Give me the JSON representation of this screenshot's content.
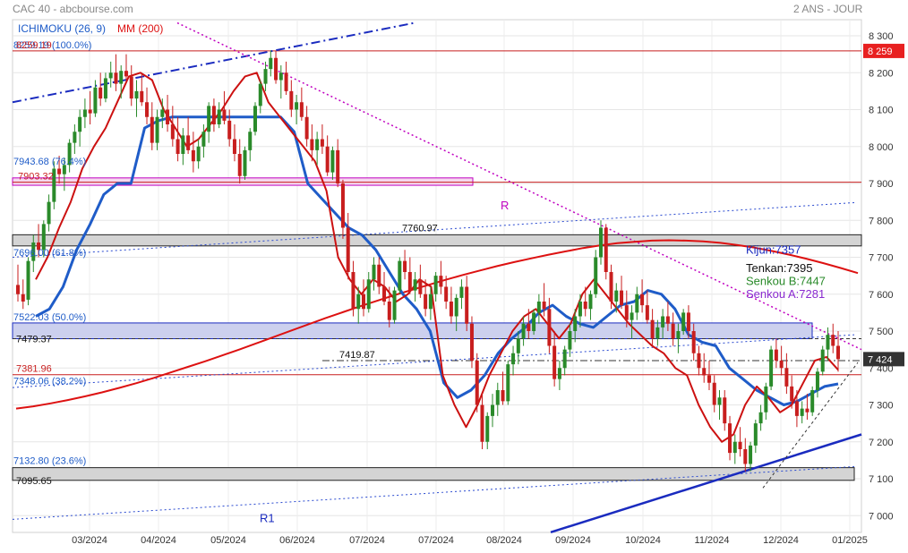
{
  "header": {
    "instrument": "CAC 40 - abcbourse.com",
    "period": "2 ANS - JOUR"
  },
  "legend": {
    "ichimoku_label": "ICHIMOKU (26, 9)",
    "ma_label": "MM (200)",
    "colors": {
      "ichimoku": "#1f5cc8",
      "ma": "#dd1111"
    }
  },
  "readouts": {
    "kijun": "Kijun:7357",
    "tenkan": "Tenkan:7395",
    "senkou_b": "Senkou B:7447",
    "senkou_a": "Senkou A:7281",
    "colors": {
      "kijun": "#1a2bbf",
      "tenkan": "#111111",
      "senkou_b": "#2a8a2a",
      "senkou_a": "#8a2ad0"
    }
  },
  "chart_data": {
    "type": "candlestick",
    "y_ticks": [
      "8 300",
      "8 200",
      "8 100",
      "8 000",
      "7 900",
      "7 800",
      "7 700",
      "7 600",
      "7 500",
      "7 400",
      "7 300",
      "7 200",
      "7 100",
      "7 000"
    ],
    "ylim": [
      6975,
      8340
    ],
    "x_ticks": [
      "03/2024",
      "04/2024",
      "05/2024",
      "06/2024",
      "07/2024",
      "07/2024",
      "08/2024",
      "09/2024",
      "10/2024",
      "11/2024",
      "12/2024",
      "01/2025"
    ],
    "price_badges": [
      {
        "value": 8259,
        "label": "8 259",
        "color": "#e82020"
      },
      {
        "value": 7424,
        "label": "7 424",
        "color": "#333333"
      }
    ],
    "fibonacci": [
      {
        "value": 8259.19,
        "label": "8259.19 (100.0%)"
      },
      {
        "value": 7943.68,
        "label": "7943.68 (76.4%)"
      },
      {
        "value": 7696.0,
        "label": "7696.00 (61.8%)"
      },
      {
        "value": 7522.03,
        "label": "7522.03 (50.0%)"
      },
      {
        "value": 7348.06,
        "label": "7348.06 (38.2%)"
      },
      {
        "value": 7132.8,
        "label": "7132.80 (23.6%)"
      }
    ],
    "levels": [
      {
        "value": 8259.19,
        "label": "8259.19"
      },
      {
        "value": 7903.32,
        "label": "7903.32"
      },
      {
        "value": 7479.37,
        "label": "7479.37"
      },
      {
        "value": 7381.96,
        "label": "7381.96"
      },
      {
        "value": 7095.65,
        "label": "7095.65"
      }
    ],
    "annotations": [
      {
        "value": 7760.97,
        "label": "7760.97"
      },
      {
        "value": 7419.87,
        "label": "7419.87"
      },
      {
        "label": "R"
      },
      {
        "label": "R1"
      }
    ],
    "candles": [
      [
        7625,
        7680,
        7580,
        7600
      ],
      [
        7600,
        7640,
        7560,
        7580
      ],
      [
        7585,
        7700,
        7570,
        7690
      ],
      [
        7690,
        7760,
        7660,
        7740
      ],
      [
        7740,
        7790,
        7700,
        7720
      ],
      [
        7720,
        7800,
        7700,
        7790
      ],
      [
        7790,
        7870,
        7770,
        7850
      ],
      [
        7850,
        7960,
        7830,
        7940
      ],
      [
        7940,
        7975,
        7900,
        7925
      ],
      [
        7925,
        7970,
        7880,
        7950
      ],
      [
        7950,
        8020,
        7930,
        8010
      ],
      [
        8010,
        8060,
        7980,
        8040
      ],
      [
        8040,
        8100,
        8000,
        8080
      ],
      [
        8080,
        8130,
        8050,
        8100
      ],
      [
        8100,
        8150,
        8060,
        8090
      ],
      [
        8090,
        8180,
        8080,
        8160
      ],
      [
        8160,
        8200,
        8110,
        8130
      ],
      [
        8130,
        8200,
        8120,
        8185
      ],
      [
        8185,
        8230,
        8160,
        8200
      ],
      [
        8200,
        8250,
        8150,
        8170
      ],
      [
        8170,
        8220,
        8130,
        8205
      ],
      [
        8205,
        8250,
        8180,
        8190
      ],
      [
        8190,
        8220,
        8110,
        8130
      ],
      [
        8130,
        8180,
        8080,
        8150
      ],
      [
        8150,
        8200,
        8110,
        8120
      ],
      [
        8120,
        8160,
        8060,
        8080
      ],
      [
        8080,
        8120,
        7990,
        8010
      ],
      [
        8010,
        8100,
        7990,
        8080
      ],
      [
        8080,
        8130,
        8050,
        8100
      ],
      [
        8100,
        8140,
        8040,
        8060
      ],
      [
        8060,
        8110,
        8000,
        8020
      ],
      [
        8020,
        8080,
        7960,
        7980
      ],
      [
        7980,
        8050,
        7950,
        8030
      ],
      [
        8030,
        8080,
        7980,
        7990
      ],
      [
        7990,
        8040,
        7930,
        7960
      ],
      [
        7960,
        8020,
        7940,
        8000
      ],
      [
        8000,
        8060,
        7970,
        8040
      ],
      [
        8040,
        8120,
        8010,
        8110
      ],
      [
        8110,
        8130,
        8040,
        8060
      ],
      [
        8060,
        8120,
        8050,
        8100
      ],
      [
        8100,
        8150,
        8060,
        8070
      ],
      [
        8070,
        8100,
        8000,
        8020
      ],
      [
        8020,
        8060,
        7960,
        7980
      ],
      [
        7980,
        8020,
        7900,
        7920
      ],
      [
        7920,
        8000,
        7910,
        7990
      ],
      [
        7990,
        8050,
        7960,
        8040
      ],
      [
        8040,
        8120,
        8030,
        8110
      ],
      [
        8110,
        8180,
        8090,
        8170
      ],
      [
        8170,
        8230,
        8150,
        8210
      ],
      [
        8210,
        8260,
        8190,
        8240
      ],
      [
        8240,
        8260,
        8170,
        8180
      ],
      [
        8180,
        8220,
        8130,
        8200
      ],
      [
        8200,
        8230,
        8140,
        8150
      ],
      [
        8150,
        8180,
        8080,
        8100
      ],
      [
        8100,
        8140,
        8060,
        8120
      ],
      [
        8120,
        8160,
        8070,
        8080
      ],
      [
        8080,
        8110,
        8000,
        8020
      ],
      [
        8020,
        8060,
        7960,
        7990
      ],
      [
        7990,
        8040,
        7950,
        8020
      ],
      [
        8020,
        8060,
        7980,
        8000
      ],
      [
        8000,
        8030,
        7920,
        7930
      ],
      [
        7930,
        8000,
        7910,
        7990
      ],
      [
        7990,
        8020,
        7890,
        7900
      ],
      [
        7900,
        7910,
        7750,
        7780
      ],
      [
        7780,
        7820,
        7640,
        7660
      ],
      [
        7660,
        7690,
        7540,
        7560
      ],
      [
        7560,
        7620,
        7520,
        7600
      ],
      [
        7600,
        7640,
        7540,
        7560
      ],
      [
        7560,
        7660,
        7550,
        7640
      ],
      [
        7640,
        7700,
        7610,
        7680
      ],
      [
        7680,
        7700,
        7600,
        7620
      ],
      [
        7620,
        7660,
        7570,
        7580
      ],
      [
        7580,
        7620,
        7510,
        7530
      ],
      [
        7530,
        7620,
        7520,
        7610
      ],
      [
        7610,
        7700,
        7600,
        7690
      ],
      [
        7690,
        7720,
        7640,
        7660
      ],
      [
        7660,
        7700,
        7600,
        7610
      ],
      [
        7610,
        7660,
        7580,
        7640
      ],
      [
        7640,
        7680,
        7590,
        7600
      ],
      [
        7600,
        7640,
        7540,
        7560
      ],
      [
        7560,
        7620,
        7530,
        7600
      ],
      [
        7600,
        7660,
        7580,
        7650
      ],
      [
        7650,
        7690,
        7600,
        7620
      ],
      [
        7620,
        7650,
        7560,
        7580
      ],
      [
        7580,
        7620,
        7520,
        7540
      ],
      [
        7540,
        7600,
        7500,
        7590
      ],
      [
        7590,
        7640,
        7560,
        7620
      ],
      [
        7620,
        7650,
        7500,
        7520
      ],
      [
        7520,
        7540,
        7400,
        7420
      ],
      [
        7420,
        7440,
        7280,
        7300
      ],
      [
        7300,
        7330,
        7180,
        7200
      ],
      [
        7200,
        7280,
        7180,
        7270
      ],
      [
        7270,
        7330,
        7240,
        7300
      ],
      [
        7300,
        7360,
        7270,
        7340
      ],
      [
        7340,
        7390,
        7300,
        7310
      ],
      [
        7310,
        7420,
        7300,
        7410
      ],
      [
        7410,
        7460,
        7380,
        7440
      ],
      [
        7440,
        7500,
        7410,
        7480
      ],
      [
        7480,
        7540,
        7460,
        7520
      ],
      [
        7520,
        7560,
        7480,
        7500
      ],
      [
        7500,
        7560,
        7490,
        7550
      ],
      [
        7550,
        7600,
        7520,
        7580
      ],
      [
        7580,
        7630,
        7540,
        7560
      ],
      [
        7560,
        7590,
        7440,
        7460
      ],
      [
        7460,
        7500,
        7350,
        7370
      ],
      [
        7370,
        7420,
        7340,
        7400
      ],
      [
        7400,
        7460,
        7380,
        7450
      ],
      [
        7450,
        7520,
        7430,
        7500
      ],
      [
        7500,
        7560,
        7470,
        7540
      ],
      [
        7540,
        7600,
        7510,
        7580
      ],
      [
        7580,
        7620,
        7540,
        7560
      ],
      [
        7560,
        7610,
        7530,
        7600
      ],
      [
        7600,
        7720,
        7590,
        7700
      ],
      [
        7700,
        7800,
        7680,
        7780
      ],
      [
        7780,
        7790,
        7640,
        7660
      ],
      [
        7660,
        7680,
        7560,
        7580
      ],
      [
        7580,
        7630,
        7550,
        7610
      ],
      [
        7610,
        7650,
        7560,
        7570
      ],
      [
        7570,
        7610,
        7510,
        7530
      ],
      [
        7530,
        7570,
        7480,
        7550
      ],
      [
        7550,
        7620,
        7530,
        7600
      ],
      [
        7600,
        7640,
        7550,
        7570
      ],
      [
        7570,
        7610,
        7520,
        7530
      ],
      [
        7530,
        7560,
        7460,
        7480
      ],
      [
        7480,
        7530,
        7460,
        7510
      ],
      [
        7510,
        7560,
        7480,
        7540
      ],
      [
        7540,
        7580,
        7500,
        7520
      ],
      [
        7520,
        7550,
        7460,
        7480
      ],
      [
        7480,
        7520,
        7440,
        7500
      ],
      [
        7500,
        7560,
        7490,
        7550
      ],
      [
        7550,
        7570,
        7480,
        7500
      ],
      [
        7500,
        7520,
        7420,
        7440
      ],
      [
        7440,
        7460,
        7380,
        7400
      ],
      [
        7400,
        7440,
        7360,
        7380
      ],
      [
        7380,
        7420,
        7340,
        7360
      ],
      [
        7360,
        7380,
        7280,
        7300
      ],
      [
        7300,
        7340,
        7260,
        7320
      ],
      [
        7320,
        7340,
        7230,
        7250
      ],
      [
        7250,
        7270,
        7150,
        7170
      ],
      [
        7170,
        7220,
        7140,
        7200
      ],
      [
        7200,
        7240,
        7160,
        7180
      ],
      [
        7180,
        7210,
        7120,
        7140
      ],
      [
        7140,
        7200,
        7120,
        7190
      ],
      [
        7190,
        7260,
        7170,
        7250
      ],
      [
        7250,
        7300,
        7230,
        7280
      ],
      [
        7280,
        7360,
        7260,
        7350
      ],
      [
        7350,
        7460,
        7340,
        7450
      ],
      [
        7450,
        7480,
        7400,
        7420
      ],
      [
        7420,
        7460,
        7380,
        7400
      ],
      [
        7400,
        7440,
        7330,
        7350
      ],
      [
        7350,
        7380,
        7290,
        7310
      ],
      [
        7310,
        7340,
        7240,
        7270
      ],
      [
        7270,
        7310,
        7250,
        7290
      ],
      [
        7290,
        7330,
        7260,
        7280
      ],
      [
        7280,
        7350,
        7270,
        7340
      ],
      [
        7340,
        7400,
        7320,
        7390
      ],
      [
        7390,
        7460,
        7380,
        7450
      ],
      [
        7450,
        7510,
        7420,
        7490
      ],
      [
        7490,
        7520,
        7440,
        7460
      ],
      [
        7460,
        7500,
        7390,
        7424
      ]
    ],
    "series": [
      {
        "name": "MM (200)",
        "color": "#dd1111",
        "values": [
          7290,
          7296,
          7304,
          7313,
          7323,
          7334,
          7346,
          7359,
          7373,
          7388,
          7403,
          7418,
          7434,
          7450,
          7467,
          7484,
          7501,
          7518,
          7535,
          7551,
          7567,
          7582,
          7597,
          7611,
          7625,
          7639,
          7652,
          7664,
          7676,
          7687,
          7697,
          7707,
          7716,
          7725,
          7732,
          7738,
          7742,
          7745,
          7746,
          7745,
          7743,
          7739,
          7733,
          7726,
          7717,
          7707,
          7696,
          7684,
          7671,
          7657
        ]
      },
      {
        "name": "Kijun",
        "color": "#1f5cc8",
        "values": [
          7540,
          7560,
          7620,
          7720,
          7790,
          7870,
          7900,
          7900,
          8050,
          8070,
          8080,
          8080,
          8080,
          8080,
          8080,
          8080,
          8080,
          8080,
          8080,
          8040,
          7900,
          7860,
          7820,
          7780,
          7760,
          7720,
          7660,
          7600,
          7560,
          7500,
          7360,
          7320,
          7340,
          7380,
          7440,
          7480,
          7510,
          7550,
          7570,
          7540,
          7520,
          7510,
          7540,
          7570,
          7580,
          7610,
          7600,
          7560,
          7490,
          7470,
          7460,
          7400,
          7370,
          7340,
          7320,
          7300,
          7310,
          7330,
          7350,
          7357
        ]
      },
      {
        "name": "Tenkan",
        "color": "#cc1111",
        "values": [
          7640,
          7700,
          7780,
          7850,
          7940,
          8000,
          8050,
          8120,
          8190,
          8200,
          8180,
          8100,
          8050,
          8000,
          8020,
          8060,
          8100,
          8150,
          8190,
          8200,
          8120,
          8080,
          8040,
          8000,
          7960,
          7880,
          7700,
          7640,
          7600,
          7640,
          7620,
          7580,
          7600,
          7640,
          7620,
          7380,
          7300,
          7240,
          7300,
          7380,
          7440,
          7500,
          7540,
          7560,
          7520,
          7480,
          7520,
          7600,
          7640,
          7600,
          7560,
          7520,
          7490,
          7460,
          7440,
          7400,
          7380,
          7300,
          7240,
          7200,
          7220,
          7300,
          7350,
          7320,
          7280,
          7300,
          7360,
          7420,
          7430,
          7395
        ]
      }
    ]
  }
}
